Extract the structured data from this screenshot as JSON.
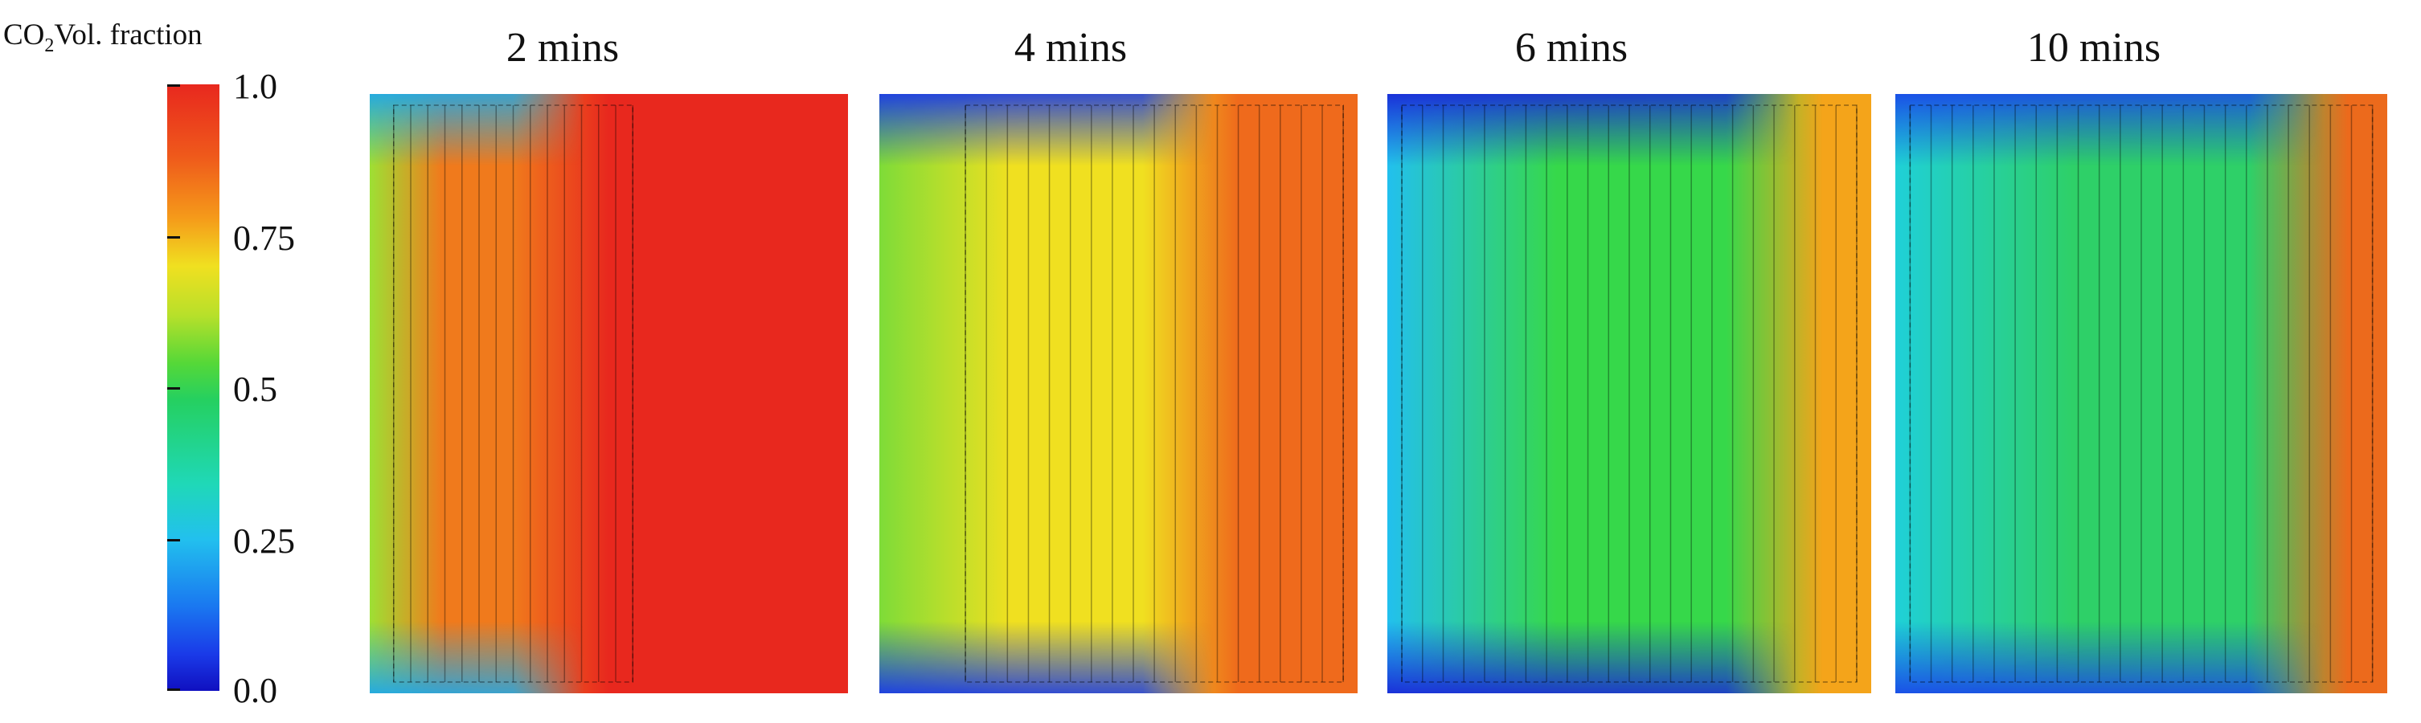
{
  "colorbar": {
    "title_prefix": "CO",
    "title_subscript": "2",
    "title_suffix": "Vol. fraction",
    "ticks": [
      "1.0",
      "0.75",
      "0.5",
      "0.25",
      "0.0"
    ],
    "ramp": [
      "#1010c0",
      "#1a78f0",
      "#22c0ee",
      "#25d060",
      "#f0e020",
      "#f59a1a",
      "#e8281e"
    ]
  },
  "panels": [
    {
      "title": "2 mins",
      "colors": {
        "base": "#e8281e",
        "band": "#f07a1c",
        "edge": "#9ee034",
        "corner": "#1fa8e8"
      }
    },
    {
      "title": "4 mins",
      "colors": {
        "base": "#ef6a1c",
        "band": "#f0e020",
        "edge": "#7edc38",
        "corner": "#1a3ae8"
      }
    },
    {
      "title": "6 mins",
      "colors": {
        "base": "#f4a41a",
        "band": "#36d84a",
        "edge": "#22c0ee",
        "corner": "#1a2ad8"
      }
    },
    {
      "title": "10 mins",
      "colors": {
        "base": "#ec6a1c",
        "band": "#2ed068",
        "edge": "#1fd0d8",
        "corner": "#1a4ae8"
      }
    }
  ]
}
